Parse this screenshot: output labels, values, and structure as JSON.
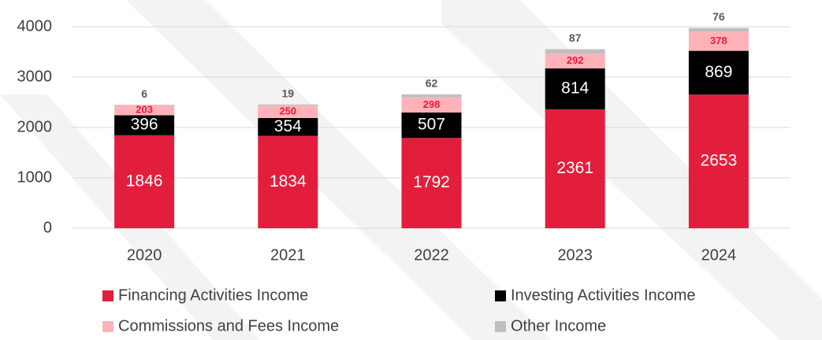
{
  "chart_data": {
    "type": "stacked_bar",
    "categories": [
      "2020",
      "2021",
      "2022",
      "2023",
      "2024"
    ],
    "series": [
      {
        "name": "Financing Activities Income",
        "color": "#e31e3c",
        "values": [
          1846,
          1834,
          1792,
          2361,
          2653
        ]
      },
      {
        "name": "Investing Activities Income",
        "color": "#000000",
        "values": [
          396,
          354,
          507,
          814,
          869
        ]
      },
      {
        "name": "Commissions and Fees Income",
        "color": "#ffb3b8",
        "values": [
          203,
          250,
          298,
          292,
          378
        ]
      },
      {
        "name": "Other Income",
        "color": "#bfbfbf",
        "values": [
          6,
          19,
          62,
          87,
          76
        ]
      }
    ],
    "ylim": [
      0,
      4000
    ],
    "yticks": [
      0,
      1000,
      2000,
      3000,
      4000
    ],
    "grid": true,
    "legend": "bottom"
  }
}
